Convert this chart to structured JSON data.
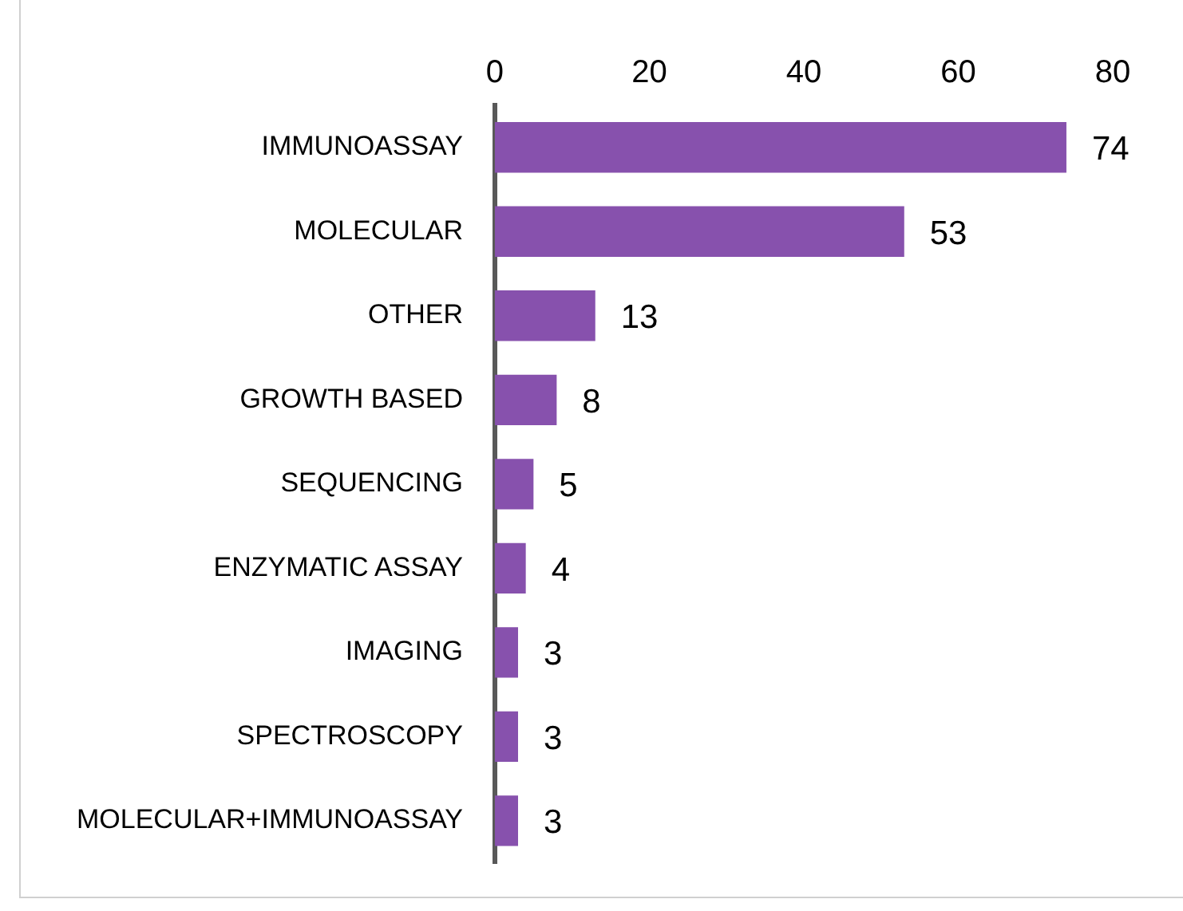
{
  "chart_data": {
    "type": "bar",
    "orientation": "horizontal",
    "categories": [
      "IMMUNOASSAY",
      "MOLECULAR",
      "OTHER",
      "GROWTH BASED",
      "SEQUENCING",
      "ENZYMATIC ASSAY",
      "IMAGING",
      "SPECTROSCOPY",
      "MOLECULAR+IMMUNOASSAY"
    ],
    "values": [
      74,
      53,
      13,
      8,
      5,
      4,
      3,
      3,
      3
    ],
    "color": "#8751ad",
    "xlim": [
      0,
      80
    ],
    "xticks": [
      0,
      20,
      40,
      60,
      80
    ],
    "grid": false,
    "legend": false,
    "data_labels": true
  }
}
